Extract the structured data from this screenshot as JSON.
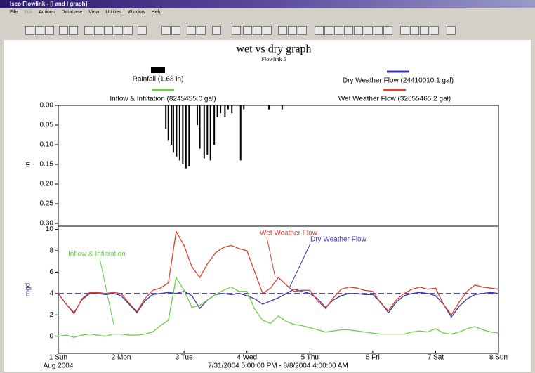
{
  "window": {
    "title": "Isco Flowlink - [I and I graph]",
    "menu": [
      "File",
      "Edit",
      "Actions",
      "Database",
      "View",
      "Utilities",
      "Window",
      "Help"
    ]
  },
  "graph": {
    "title": "wet vs dry graph",
    "subtitle": "Flowlink 5",
    "line_labels": [
      "Wet Weather Flow",
      "Dry Weather Flow",
      "Inflow & Infiltration"
    ],
    "date_note": "Aug 2004",
    "x_label": "7/31/2004 5:00:00 PM - 8/8/2004 4:00:00 AM"
  },
  "chart_data": [
    {
      "type": "bar",
      "inverted_y": true,
      "y_label": "in",
      "xlim": [
        1,
        8
      ],
      "ylim": [
        0,
        0.3
      ],
      "yticks": [
        {
          "value": 0,
          "label": "0.00"
        },
        0.05,
        {
          "value": 0.1,
          "label": "0.10"
        },
        0.15,
        {
          "value": 0.2,
          "label": "0.20"
        },
        0.25,
        {
          "value": 0.3,
          "label": "0.30"
        }
      ],
      "series": [
        {
          "name": "Rainfall (1.68 in)",
          "color": "#000000",
          "x": [
            2.71,
            2.75,
            2.8,
            2.83,
            2.88,
            2.93,
            2.98,
            3.03,
            3.08,
            3.21,
            3.25,
            3.32,
            3.37,
            3.42,
            3.48,
            3.53,
            3.58,
            3.65,
            3.7,
            3.76,
            3.9,
            3.95,
            4.35,
            4.56
          ],
          "values": [
            0.06,
            0.09,
            0.1,
            0.12,
            0.13,
            0.14,
            0.15,
            0.16,
            0.155,
            0.05,
            0.11,
            0.135,
            0.125,
            0.14,
            0.1,
            0.03,
            0.02,
            0.03,
            0.01,
            0.02,
            0.14,
            0.01,
            0.01,
            0.01
          ]
        }
      ]
    },
    {
      "type": "line",
      "y_label": "mgd",
      "reference_line": 4,
      "xlim": [
        1,
        8
      ],
      "ylim": [
        -1.6,
        10.3
      ],
      "xticks": [
        {
          "value": 1,
          "label": "1 Sun"
        },
        {
          "value": 2,
          "label": "2 Mon"
        },
        {
          "value": 3,
          "label": "3 Tue"
        },
        {
          "value": 4,
          "label": "4 Wed"
        },
        {
          "value": 5,
          "label": "5 Thu"
        },
        {
          "value": 6,
          "label": "6 Fri"
        },
        {
          "value": 7,
          "label": "7 Sat"
        },
        {
          "value": 8,
          "label": "8 Sun"
        }
      ],
      "yticks": [
        0,
        2,
        4,
        6,
        8,
        10
      ],
      "x": [
        1,
        1.125,
        1.25,
        1.375,
        1.5,
        1.625,
        1.75,
        1.875,
        2,
        2.125,
        2.25,
        2.375,
        2.5,
        2.625,
        2.75,
        2.875,
        3,
        3.125,
        3.25,
        3.375,
        3.5,
        3.625,
        3.75,
        3.875,
        4,
        4.125,
        4.25,
        4.375,
        4.5,
        4.625,
        4.75,
        4.875,
        5,
        5.125,
        5.25,
        5.375,
        5.5,
        5.625,
        5.75,
        5.875,
        6,
        6.125,
        6.25,
        6.375,
        6.5,
        6.625,
        6.75,
        6.875,
        7,
        7.125,
        7.25,
        7.375,
        7.5,
        7.625,
        7.75,
        7.875,
        8
      ],
      "series": [
        {
          "name": "Dry Weather Flow (24410010.1 gal)",
          "color": "#3a3aa8",
          "values": [
            4.0,
            3.0,
            2.2,
            3.4,
            4.0,
            4.0,
            3.9,
            4.0,
            3.8,
            3.0,
            2.2,
            3.3,
            3.9,
            4.0,
            4.1,
            4.0,
            4.2,
            3.8,
            2.6,
            3.4,
            3.9,
            4.0,
            3.9,
            4.0,
            3.8,
            3.5,
            3.0,
            3.3,
            3.6,
            4.0,
            4.4,
            4.2,
            4.0,
            3.5,
            2.7,
            3.4,
            3.8,
            4.0,
            4.0,
            3.9,
            3.9,
            3.2,
            2.2,
            3.2,
            3.8,
            4.0,
            4.1,
            4.0,
            3.8,
            3.0,
            1.8,
            2.8,
            3.5,
            3.9,
            4.0,
            4.1,
            4.0
          ]
        },
        {
          "name": "Inflow & Infiltation (8245455.0 gal)",
          "color": "#6ccc4a",
          "values": [
            0.0,
            0.1,
            -0.1,
            0.1,
            0.2,
            0.1,
            0.0,
            0.2,
            0.2,
            0.1,
            0.1,
            0.2,
            0.4,
            1.0,
            1.5,
            5.5,
            4.3,
            2.7,
            2.9,
            3.4,
            3.9,
            4.3,
            4.6,
            4.2,
            4.2,
            2.5,
            1.5,
            1.2,
            1.9,
            1.4,
            1.1,
            1.0,
            0.8,
            0.6,
            0.4,
            0.5,
            0.6,
            0.6,
            0.5,
            0.4,
            0.3,
            0.2,
            0.2,
            0.2,
            0.2,
            0.4,
            0.5,
            0.4,
            0.7,
            0.3,
            0.2,
            0.4,
            0.7,
            0.9,
            0.6,
            0.4,
            0.3
          ]
        },
        {
          "name": "Wet Weather Flow (32655465.2 gal)",
          "color": "#e0402a",
          "values": [
            4.0,
            3.0,
            2.1,
            3.5,
            4.1,
            4.1,
            4.0,
            4.1,
            4.0,
            3.1,
            2.3,
            3.5,
            4.3,
            4.5,
            5.0,
            9.8,
            8.5,
            6.5,
            5.5,
            6.8,
            7.8,
            8.3,
            8.5,
            8.2,
            8.0,
            6.0,
            4.0,
            4.5,
            5.5,
            4.8,
            4.2,
            4.3,
            4.3,
            3.3,
            2.6,
            3.6,
            4.4,
            4.6,
            4.5,
            4.3,
            4.2,
            3.1,
            2.4,
            3.4,
            4.0,
            4.4,
            4.6,
            4.4,
            4.5,
            3.0,
            2.0,
            3.2,
            4.2,
            4.8,
            4.6,
            4.5,
            4.4
          ]
        }
      ]
    }
  ]
}
